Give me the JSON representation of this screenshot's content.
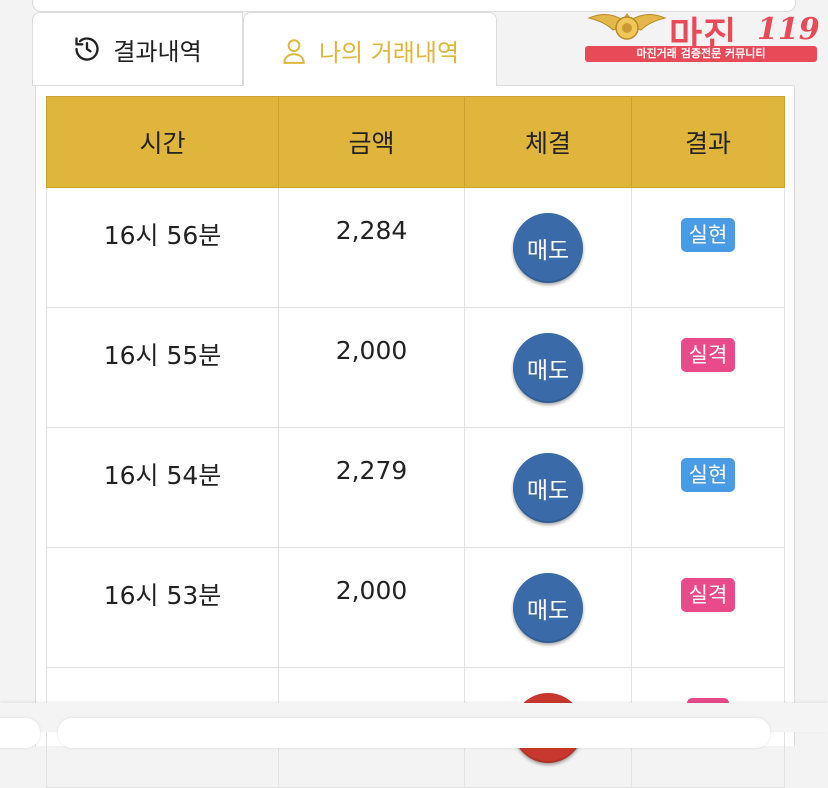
{
  "tabs": {
    "history": {
      "label": "결과내역",
      "icon": "history-icon"
    },
    "mine": {
      "label": "나의 거래내역",
      "icon": "user-icon",
      "active": true
    }
  },
  "logo": {
    "name": "마진",
    "number": "119",
    "tagline": "마진거래 검증전문 커뮤니티"
  },
  "table": {
    "headers": [
      "시간",
      "금액",
      "체결",
      "결과"
    ],
    "rows": [
      {
        "time": "16시 56분",
        "amount": "2,284",
        "trade": "매도",
        "result": "실현"
      },
      {
        "time": "16시 55분",
        "amount": "2,000",
        "trade": "매도",
        "result": "실격"
      },
      {
        "time": "16시 54분",
        "amount": "2,279",
        "trade": "매도",
        "result": "실현"
      },
      {
        "time": "16시 53분",
        "amount": "2,000",
        "trade": "매도",
        "result": "실격"
      },
      {
        "time": "",
        "amount": "",
        "trade": "",
        "result": ""
      }
    ]
  },
  "colors": {
    "header": "#dfb63b",
    "active_tab": "#e0b63a",
    "sell": "#3a6aa8",
    "buy": "#c8382e",
    "win_badge": "#4a9be6",
    "lose_badge": "#e84a8a",
    "logo": "#e84a58"
  }
}
